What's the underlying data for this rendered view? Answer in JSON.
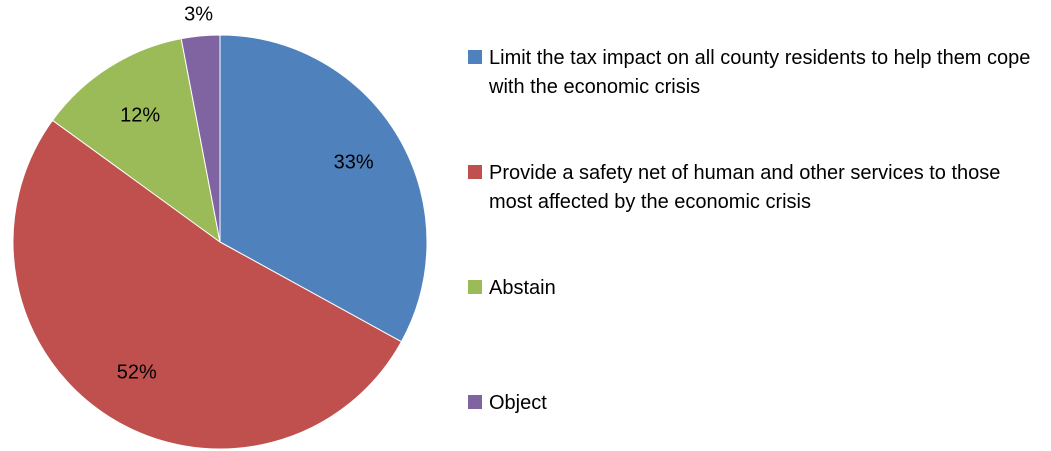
{
  "chart_data": {
    "type": "pie",
    "categories": [
      "Limit the tax impact on all county residents to help them cope with the economic crisis",
      "Provide a safety net of human and other services to those most affected by the economic crisis",
      "Abstain",
      "Object"
    ],
    "values": [
      33,
      52,
      12,
      3
    ],
    "data_labels": [
      "33%",
      "52%",
      "12%",
      "3%"
    ],
    "colors": [
      "#4F81BD",
      "#C0504D",
      "#9BBB59",
      "#8064A2"
    ],
    "start_angle": "12 o'clock",
    "direction": "clockwise",
    "legend_position": "right"
  }
}
